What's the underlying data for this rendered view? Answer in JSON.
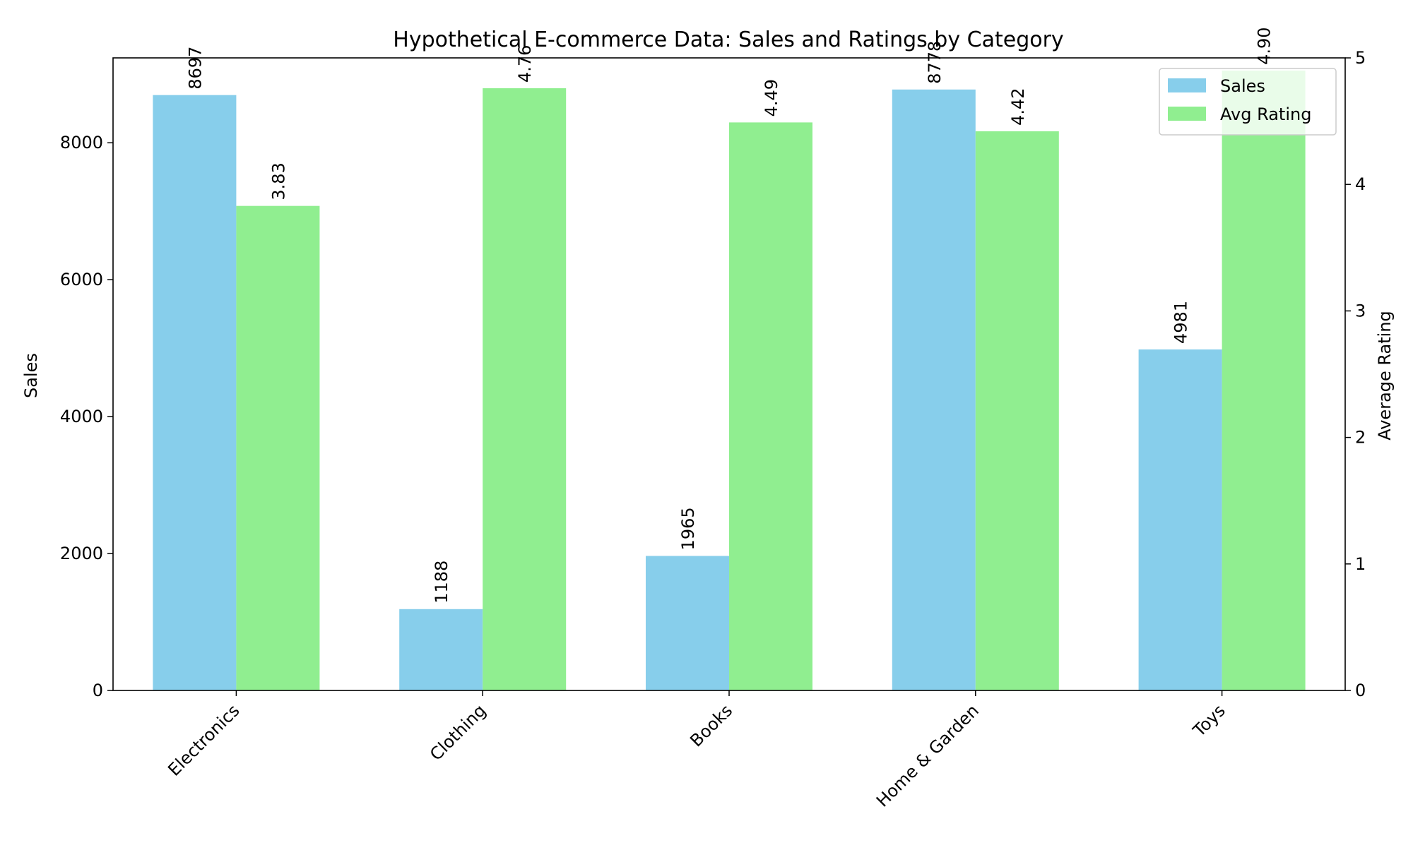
{
  "chart_data": {
    "type": "bar",
    "title": "Hypothetical E-commerce Data: Sales and Ratings by Category",
    "categories": [
      "Electronics",
      "Clothing",
      "Books",
      "Home & Garden",
      "Toys"
    ],
    "series": [
      {
        "name": "Sales",
        "axis": "left",
        "color": "#87ceeb",
        "values": [
          8697,
          1188,
          1965,
          8778,
          4981
        ],
        "labels": [
          "8697",
          "1188",
          "1965",
          "8778",
          "4981"
        ]
      },
      {
        "name": "Avg Rating",
        "axis": "right",
        "color": "#90ee90",
        "values": [
          3.83,
          4.76,
          4.49,
          4.42,
          4.9
        ],
        "labels": [
          "3.83",
          "4.76",
          "4.49",
          "4.42",
          "4.90"
        ]
      }
    ],
    "ylabel_left": "Sales",
    "ylabel_right": "Average Rating",
    "xlabel": "",
    "ylim_left": [
      0,
      9240
    ],
    "ylim_right": [
      0,
      5
    ],
    "yticks_left": [
      "0",
      "2000",
      "4000",
      "6000",
      "8000"
    ],
    "yticks_left_values": [
      0,
      2000,
      4000,
      6000,
      8000
    ],
    "yticks_right": [
      "0",
      "1",
      "2",
      "3",
      "4",
      "5"
    ],
    "yticks_right_values": [
      0,
      1,
      2,
      3,
      4,
      5
    ],
    "grid": false,
    "legend_position": "top-right"
  }
}
